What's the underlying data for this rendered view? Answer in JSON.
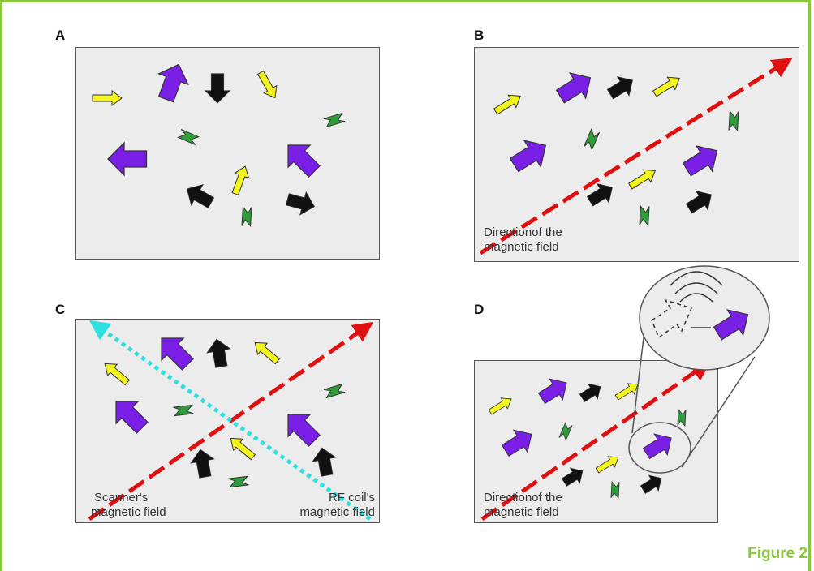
{
  "panels": {
    "a": {
      "label": "A"
    },
    "b": {
      "label": "B",
      "caption_line1": "Directionof the",
      "caption_line2": "magnetic field"
    },
    "c": {
      "label": "C",
      "left_caption_line1": "Scanner's",
      "left_caption_line2": "magnetic field",
      "right_caption_line1": "RF coil's",
      "right_caption_line2": "magnetic field"
    },
    "d": {
      "label": "D",
      "caption_line1": "Directionof the",
      "caption_line2": "magnetic field"
    }
  },
  "figure_label": "Figure 2",
  "colors": {
    "frame": "#8cc63f",
    "panel_bg": "#ececec",
    "purple": "#7a1fe6",
    "black": "#111111",
    "yellow": "#f5f51e",
    "green": "#2f9e3a",
    "red_dashed": "#e01010",
    "cyan_dotted": "#2fe0e0"
  }
}
